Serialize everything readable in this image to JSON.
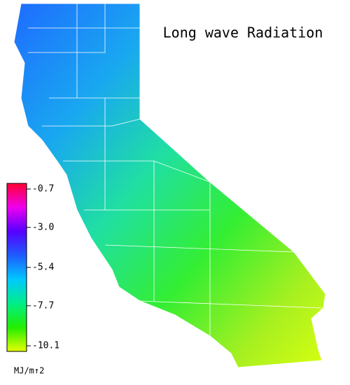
{
  "chart_data": {
    "type": "map",
    "title": "Long wave Radiation",
    "colorbar": {
      "label": "MJ/m↑2",
      "lim": [
        -10.1,
        -0.7
      ],
      "ticks": [
        -0.7,
        {
          "value": -3,
          "label": "-3.0"
        },
        -5.4,
        -7.7,
        -10.1
      ],
      "colors": [
        "#ff0033",
        "#ee00ee",
        "#5500ff",
        "#1e5cff",
        "#00c8ff",
        "#00ee88",
        "#22ee00",
        "#e6ff00"
      ]
    }
  }
}
